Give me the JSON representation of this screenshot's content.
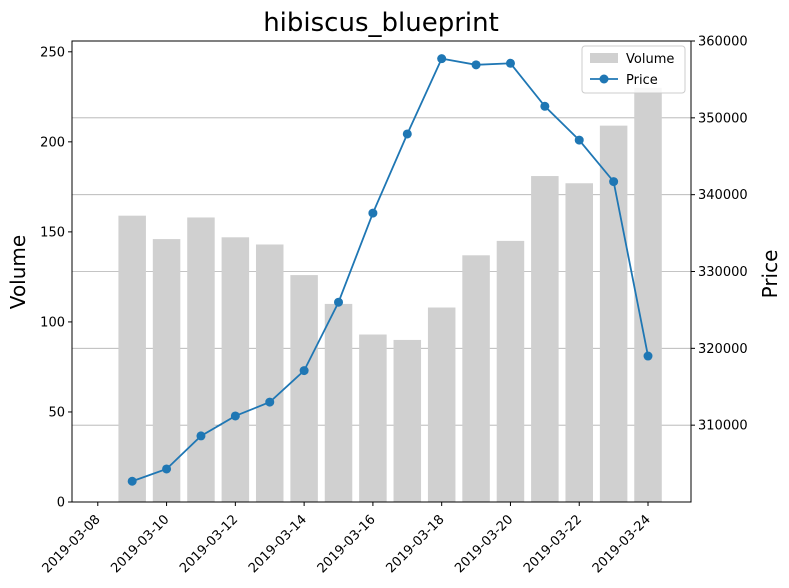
{
  "chart_data": {
    "type": "bar+line",
    "title": "hibiscus_blueprint",
    "x": [
      "2019-03-09",
      "2019-03-10",
      "2019-03-11",
      "2019-03-12",
      "2019-03-13",
      "2019-03-14",
      "2019-03-15",
      "2019-03-16",
      "2019-03-17",
      "2019-03-18",
      "2019-03-19",
      "2019-03-20",
      "2019-03-21",
      "2019-03-22",
      "2019-03-23",
      "2019-03-24"
    ],
    "x_tick_labels": [
      "2019-03-08",
      "2019-03-10",
      "2019-03-12",
      "2019-03-14",
      "2019-03-16",
      "2019-03-18",
      "2019-03-20",
      "2019-03-22",
      "2019-03-24"
    ],
    "series": [
      {
        "name": "Volume",
        "kind": "bar",
        "axis": "left",
        "color": "#d0d0d0",
        "values": [
          159,
          146,
          158,
          147,
          143,
          126,
          110,
          93,
          90,
          108,
          137,
          145,
          181,
          177,
          209,
          230
        ]
      },
      {
        "name": "Price",
        "kind": "line",
        "axis": "right",
        "color": "#1f77b4",
        "marker": "circle",
        "values": [
          302700,
          304300,
          308600,
          311200,
          313000,
          317100,
          326000,
          337600,
          347900,
          357700,
          356900,
          357100,
          351500,
          347100,
          341700,
          319000
        ]
      }
    ],
    "y_left": {
      "label": "Volume",
      "lim": [
        0,
        256
      ],
      "ticks": [
        0,
        50,
        100,
        150,
        200,
        250
      ],
      "tick_labels": [
        "0",
        "50",
        "100",
        "150",
        "200",
        "250"
      ]
    },
    "y_right": {
      "label": "Price",
      "lim": [
        300000,
        360000
      ],
      "ticks": [
        310000,
        320000,
        330000,
        340000,
        350000,
        360000
      ],
      "tick_labels": [
        "310000",
        "320000",
        "330000",
        "340000",
        "350000",
        "360000"
      ]
    },
    "grid": "horizontal gridlines at right-axis ticks",
    "legend": {
      "position": "top-right",
      "entries": [
        "Volume",
        "Price"
      ]
    }
  }
}
